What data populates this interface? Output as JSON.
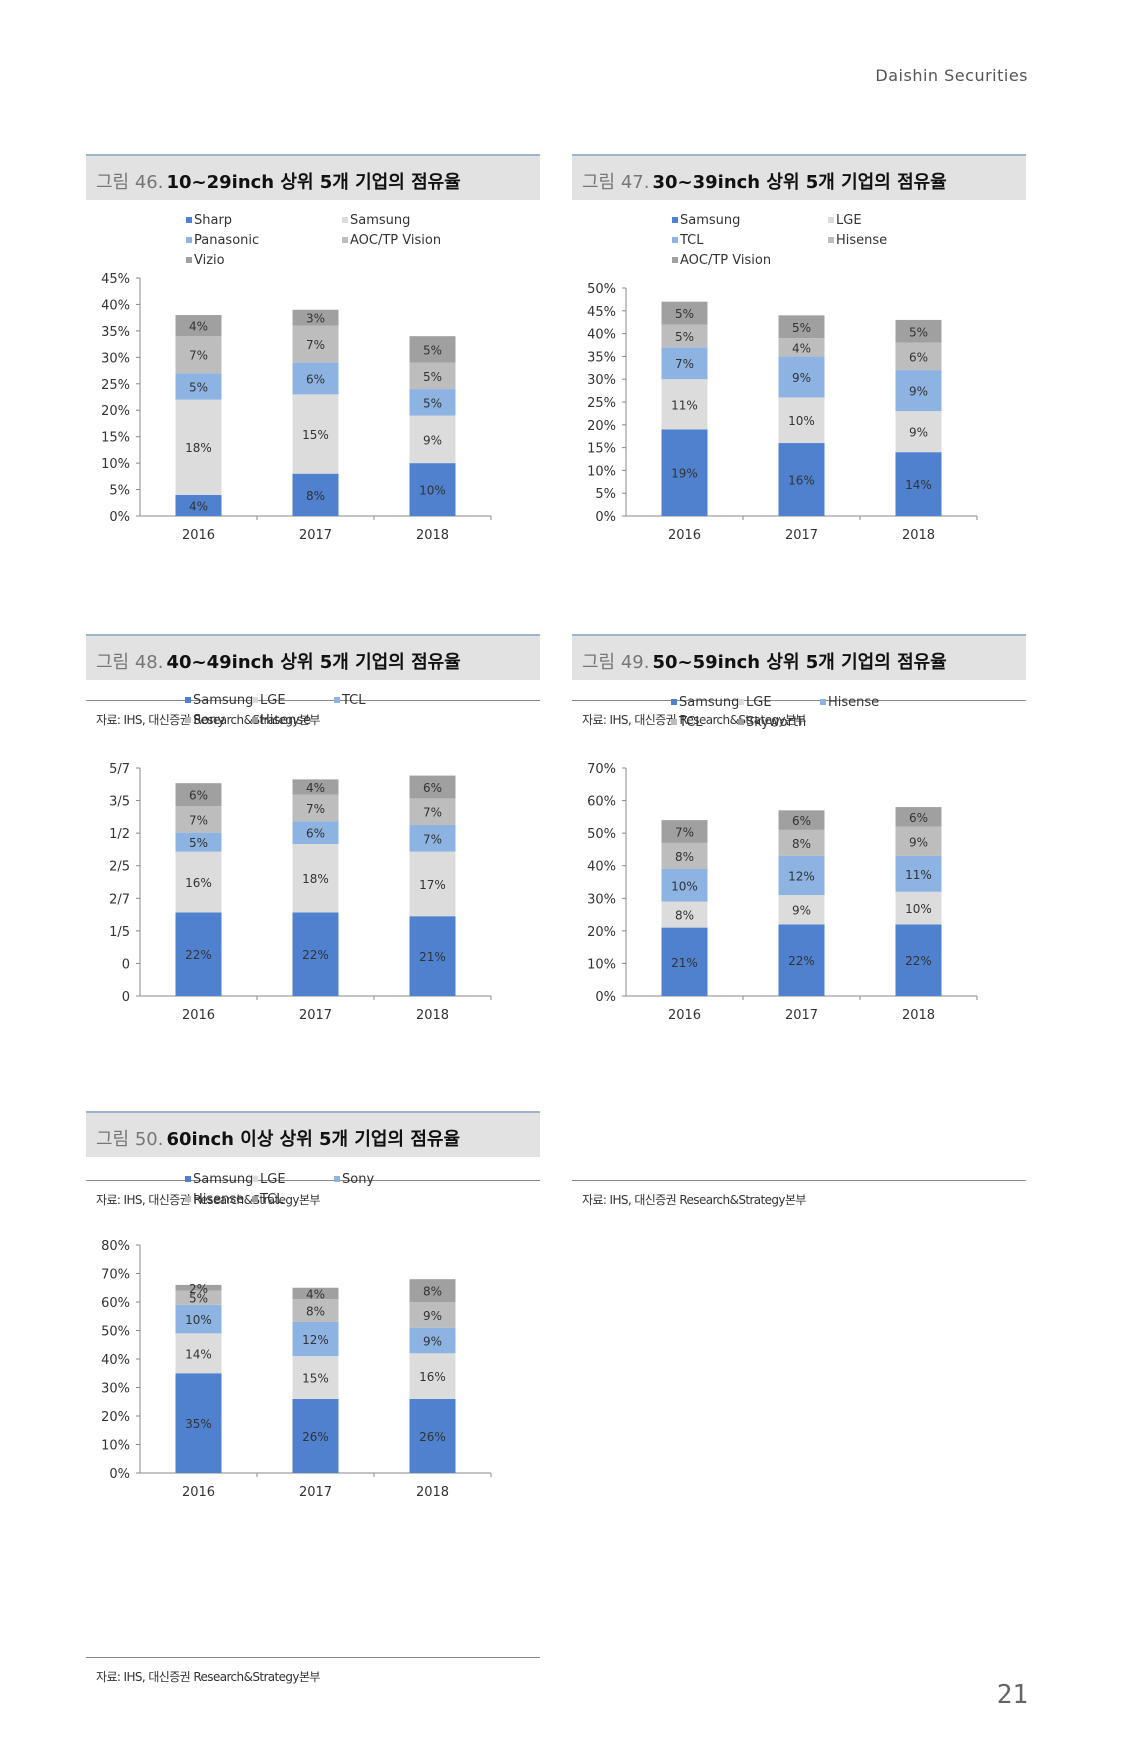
{
  "header": {
    "brand": "Daishin Securities"
  },
  "page_number": "21",
  "chart_data": [
    {
      "type": "bar",
      "stacked": true,
      "fig_prefix": "그림 46.",
      "title": "10~29inch 상위 5개 기업의 점유율",
      "source": "자료: IHS, 대신증권 Research&Strategy본부",
      "categories": [
        "2016",
        "2017",
        "2018"
      ],
      "ylim": [
        0,
        45
      ],
      "yticks": [
        "0%",
        "5%",
        "10%",
        "15%",
        "20%",
        "25%",
        "30%",
        "35%",
        "40%",
        "45%"
      ],
      "legend_cols": [
        0,
        1,
        0,
        1,
        0
      ],
      "series": [
        {
          "name": "Sharp",
          "values": [
            4,
            8,
            10
          ],
          "labels": [
            "4%",
            "8%",
            "10%"
          ],
          "color": "#4f81cf"
        },
        {
          "name": "Samsung",
          "values": [
            18,
            15,
            9
          ],
          "labels": [
            "18%",
            "15%",
            "9%"
          ],
          "color": "#dcdcdc"
        },
        {
          "name": "Panasonic",
          "values": [
            5,
            6,
            5
          ],
          "labels": [
            "5%",
            "6%",
            "5%"
          ],
          "color": "#8db3e2"
        },
        {
          "name": "AOC/TP Vision",
          "values": [
            7,
            7,
            5
          ],
          "labels": [
            "7%",
            "7%",
            "5%"
          ],
          "color": "#bdbdbd"
        },
        {
          "name": "Vizio",
          "values": [
            4,
            3,
            5
          ],
          "labels": [
            "4%",
            "3%",
            "5%"
          ],
          "color": "#a0a0a0"
        }
      ]
    },
    {
      "type": "bar",
      "stacked": true,
      "fig_prefix": "그림 47.",
      "title": "30~39inch 상위 5개 기업의 점유율",
      "source": "자료: IHS, 대신증권 Research&Strategy본부",
      "categories": [
        "2016",
        "2017",
        "2018"
      ],
      "ylim": [
        0,
        50
      ],
      "yticks": [
        "0%",
        "5%",
        "10%",
        "15%",
        "20%",
        "25%",
        "30%",
        "35%",
        "40%",
        "45%",
        "50%"
      ],
      "legend_cols": [
        0,
        1,
        0,
        1,
        0
      ],
      "series": [
        {
          "name": "Samsung",
          "values": [
            19,
            16,
            14
          ],
          "labels": [
            "19%",
            "16%",
            "14%"
          ],
          "color": "#4f81cf"
        },
        {
          "name": "LGE",
          "values": [
            11,
            10,
            9
          ],
          "labels": [
            "11%",
            "10%",
            "9%"
          ],
          "color": "#dcdcdc"
        },
        {
          "name": "TCL",
          "values": [
            7,
            9,
            9
          ],
          "labels": [
            "7%",
            "9%",
            "9%"
          ],
          "color": "#8db3e2"
        },
        {
          "name": "Hisense",
          "values": [
            5,
            4,
            6
          ],
          "labels": [
            "5%",
            "4%",
            "6%"
          ],
          "color": "#bdbdbd"
        },
        {
          "name": "AOC/TP Vision",
          "values": [
            5,
            5,
            5
          ],
          "labels": [
            "5%",
            "5%",
            "5%"
          ],
          "color": "#a0a0a0"
        }
      ]
    },
    {
      "type": "bar",
      "stacked": true,
      "fig_prefix": "그림 48.",
      "title": "40~49inch 상위 5개 기업의 점유율",
      "source": "자료: IHS, 대신증권 Research&Strategy본부",
      "categories": [
        "2016",
        "2017",
        "2018"
      ],
      "ylim": [
        0,
        60
      ],
      "yticks": [
        "0",
        "0",
        "1/5",
        "2/7",
        "2/5",
        "1/2",
        "3/5",
        "5/7"
      ],
      "legend_cols": [
        0,
        1,
        2,
        0,
        1
      ],
      "series": [
        {
          "name": "Samsung",
          "values": [
            22,
            22,
            21
          ],
          "labels": [
            "22%",
            "22%",
            "21%"
          ],
          "color": "#4f81cf"
        },
        {
          "name": "LGE",
          "values": [
            16,
            18,
            17
          ],
          "labels": [
            "16%",
            "18%",
            "17%"
          ],
          "color": "#dcdcdc"
        },
        {
          "name": "TCL",
          "values": [
            5,
            6,
            7
          ],
          "labels": [
            "5%",
            "6%",
            "7%"
          ],
          "color": "#8db3e2"
        },
        {
          "name": "Sony",
          "values": [
            7,
            7,
            7
          ],
          "labels": [
            "7%",
            "7%",
            "7%"
          ],
          "color": "#bdbdbd"
        },
        {
          "name": "Hisense",
          "values": [
            6,
            4,
            6
          ],
          "labels": [
            "6%",
            "4%",
            "6%"
          ],
          "color": "#a0a0a0"
        }
      ]
    },
    {
      "type": "bar",
      "stacked": true,
      "fig_prefix": "그림 49.",
      "title": "50~59inch 상위 5개 기업의 점유율",
      "source": "자료: IHS, 대신증권 Research&Strategy본부",
      "categories": [
        "2016",
        "2017",
        "2018"
      ],
      "ylim": [
        0,
        70
      ],
      "yticks": [
        "0%",
        "10%",
        "20%",
        "30%",
        "40%",
        "50%",
        "60%",
        "70%"
      ],
      "legend_cols": [
        0,
        1,
        2,
        0,
        1
      ],
      "series": [
        {
          "name": "Samsung",
          "values": [
            21,
            22,
            22
          ],
          "labels": [
            "21%",
            "22%",
            "22%"
          ],
          "color": "#4f81cf"
        },
        {
          "name": "LGE",
          "values": [
            8,
            9,
            10
          ],
          "labels": [
            "8%",
            "9%",
            "10%"
          ],
          "color": "#dcdcdc"
        },
        {
          "name": "Hisense",
          "values": [
            10,
            12,
            11
          ],
          "labels": [
            "10%",
            "12%",
            "11%"
          ],
          "color": "#8db3e2"
        },
        {
          "name": "TCL",
          "values": [
            8,
            8,
            9
          ],
          "labels": [
            "8%",
            "8%",
            "9%"
          ],
          "color": "#bdbdbd"
        },
        {
          "name": "Skyworth",
          "values": [
            7,
            6,
            6
          ],
          "labels": [
            "7%",
            "6%",
            "6%"
          ],
          "color": "#a0a0a0"
        }
      ]
    },
    {
      "type": "bar",
      "stacked": true,
      "fig_prefix": "그림 50.",
      "title": "60inch 이상 상위 5개 기업의 점유율",
      "source": "자료: IHS, 대신증권 Research&Strategy본부",
      "categories": [
        "2016",
        "2017",
        "2018"
      ],
      "ylim": [
        0,
        80
      ],
      "yticks": [
        "0%",
        "10%",
        "20%",
        "30%",
        "40%",
        "50%",
        "60%",
        "70%",
        "80%"
      ],
      "legend_cols": [
        0,
        1,
        2,
        0,
        1
      ],
      "series": [
        {
          "name": "Samsung",
          "values": [
            35,
            26,
            26
          ],
          "labels": [
            "35%",
            "26%",
            "26%"
          ],
          "color": "#4f81cf"
        },
        {
          "name": "LGE",
          "values": [
            14,
            15,
            16
          ],
          "labels": [
            "14%",
            "15%",
            "16%"
          ],
          "color": "#dcdcdc"
        },
        {
          "name": "Sony",
          "values": [
            10,
            12,
            9
          ],
          "labels": [
            "10%",
            "12%",
            "9%"
          ],
          "color": "#8db3e2"
        },
        {
          "name": "Hisense",
          "values": [
            5,
            8,
            9
          ],
          "labels": [
            "5%",
            "8%",
            "9%"
          ],
          "color": "#bdbdbd"
        },
        {
          "name": "TCL",
          "values": [
            2,
            4,
            8
          ],
          "labels": [
            "2%",
            "4%",
            "8%"
          ],
          "color": "#a0a0a0"
        }
      ]
    }
  ]
}
